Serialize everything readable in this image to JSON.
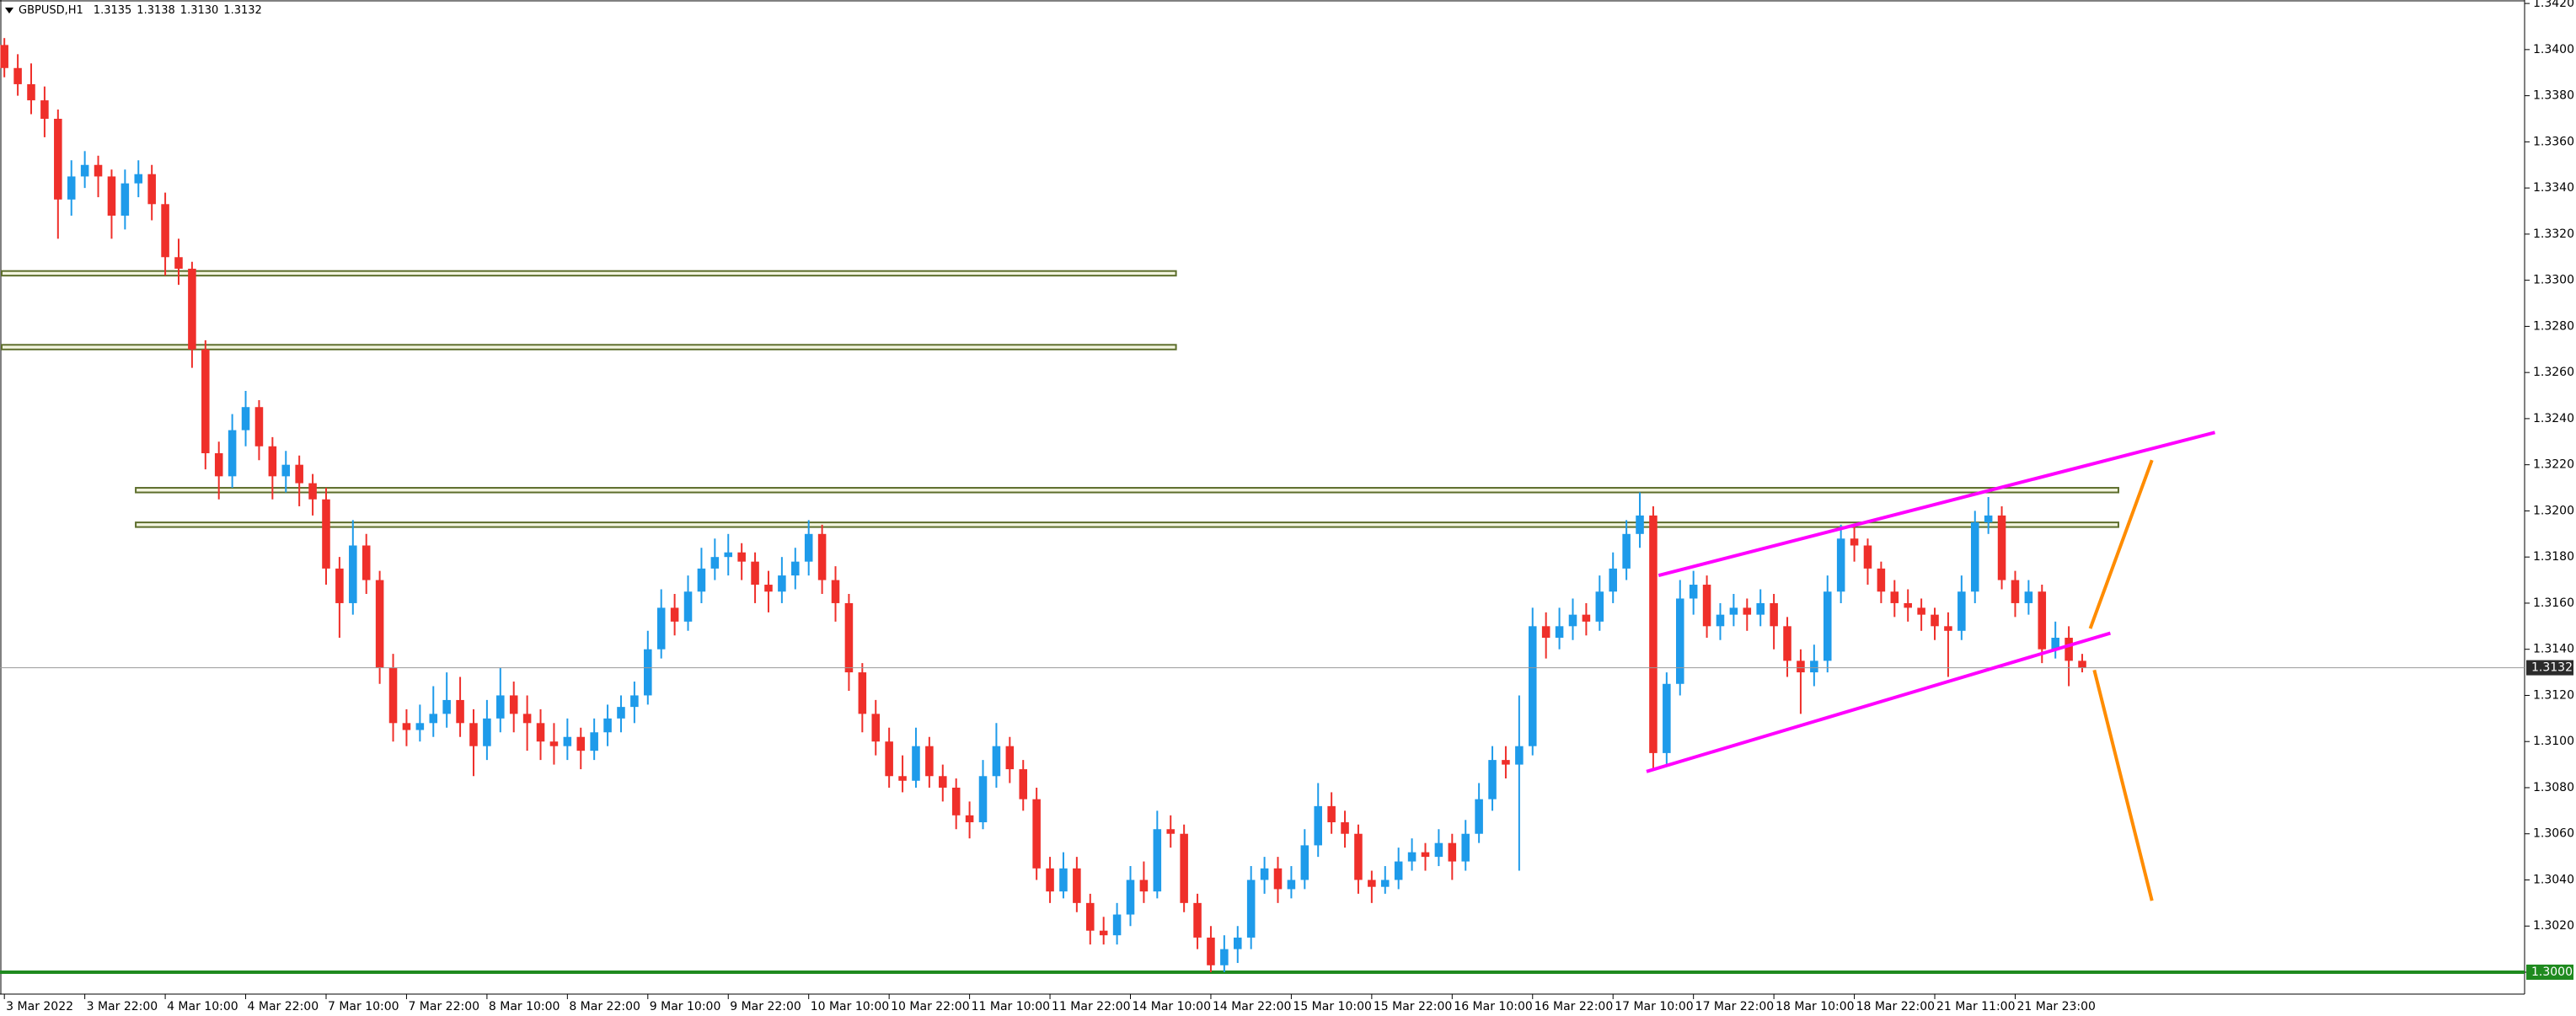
{
  "chart_data": {
    "type": "candlestick",
    "title": "GBPUSD,H1",
    "last_labels": [
      "1.3135",
      "1.3138",
      "1.3130",
      "1.3132"
    ],
    "up_color": "#1e9bea",
    "down_color": "#ef2f2a",
    "candles": [
      [
        1.3402,
        1.3405,
        1.3388,
        1.3392
      ],
      [
        1.3392,
        1.3398,
        1.338,
        1.3385
      ],
      [
        1.3385,
        1.3394,
        1.3372,
        1.3378
      ],
      [
        1.3378,
        1.3384,
        1.3362,
        1.337
      ],
      [
        1.337,
        1.3374,
        1.3318,
        1.3335
      ],
      [
        1.3335,
        1.3352,
        1.3328,
        1.3345
      ],
      [
        1.3345,
        1.3356,
        1.334,
        1.335
      ],
      [
        1.335,
        1.3354,
        1.3336,
        1.3345
      ],
      [
        1.3345,
        1.3348,
        1.3318,
        1.3328
      ],
      [
        1.3328,
        1.3348,
        1.3322,
        1.3342
      ],
      [
        1.3342,
        1.3352,
        1.3336,
        1.3346
      ],
      [
        1.3346,
        1.335,
        1.3326,
        1.3333
      ],
      [
        1.3333,
        1.3338,
        1.3302,
        1.331
      ],
      [
        1.331,
        1.3318,
        1.3298,
        1.3305
      ],
      [
        1.3305,
        1.3308,
        1.3262,
        1.327
      ],
      [
        1.327,
        1.3274,
        1.3218,
        1.3225
      ],
      [
        1.3225,
        1.323,
        1.3205,
        1.3215
      ],
      [
        1.3215,
        1.3242,
        1.321,
        1.3235
      ],
      [
        1.3235,
        1.3252,
        1.3228,
        1.3245
      ],
      [
        1.3245,
        1.3248,
        1.3222,
        1.3228
      ],
      [
        1.3228,
        1.3232,
        1.3205,
        1.3215
      ],
      [
        1.3215,
        1.3226,
        1.3208,
        1.322
      ],
      [
        1.322,
        1.3224,
        1.3202,
        1.3212
      ],
      [
        1.3212,
        1.3216,
        1.3198,
        1.3205
      ],
      [
        1.3205,
        1.321,
        1.3168,
        1.3175
      ],
      [
        1.3175,
        1.318,
        1.3145,
        1.316
      ],
      [
        1.316,
        1.3196,
        1.3155,
        1.3185
      ],
      [
        1.3185,
        1.319,
        1.3164,
        1.317
      ],
      [
        1.317,
        1.3174,
        1.3125,
        1.3132
      ],
      [
        1.3132,
        1.3138,
        1.31,
        1.3108
      ],
      [
        1.3108,
        1.3114,
        1.3098,
        1.3105
      ],
      [
        1.3105,
        1.3116,
        1.31,
        1.3108
      ],
      [
        1.3108,
        1.3124,
        1.3102,
        1.3112
      ],
      [
        1.3112,
        1.313,
        1.3106,
        1.3118
      ],
      [
        1.3118,
        1.3128,
        1.3102,
        1.3108
      ],
      [
        1.3108,
        1.3114,
        1.3085,
        1.3098
      ],
      [
        1.3098,
        1.3118,
        1.3092,
        1.311
      ],
      [
        1.311,
        1.3132,
        1.3104,
        1.312
      ],
      [
        1.312,
        1.3126,
        1.3104,
        1.3112
      ],
      [
        1.3112,
        1.312,
        1.3096,
        1.3108
      ],
      [
        1.3108,
        1.3114,
        1.3092,
        1.31
      ],
      [
        1.31,
        1.3108,
        1.309,
        1.3098
      ],
      [
        1.3098,
        1.311,
        1.3092,
        1.3102
      ],
      [
        1.3102,
        1.3106,
        1.3088,
        1.3096
      ],
      [
        1.3096,
        1.311,
        1.3092,
        1.3104
      ],
      [
        1.3104,
        1.3116,
        1.3098,
        1.311
      ],
      [
        1.311,
        1.312,
        1.3104,
        1.3115
      ],
      [
        1.3115,
        1.3126,
        1.3108,
        1.312
      ],
      [
        1.312,
        1.3148,
        1.3116,
        1.314
      ],
      [
        1.314,
        1.3166,
        1.3136,
        1.3158
      ],
      [
        1.3158,
        1.3164,
        1.3146,
        1.3152
      ],
      [
        1.3152,
        1.3172,
        1.3148,
        1.3165
      ],
      [
        1.3165,
        1.3184,
        1.316,
        1.3175
      ],
      [
        1.3175,
        1.3188,
        1.317,
        1.318
      ],
      [
        1.318,
        1.319,
        1.3172,
        1.3182
      ],
      [
        1.3182,
        1.3186,
        1.317,
        1.3178
      ],
      [
        1.3178,
        1.3182,
        1.316,
        1.3168
      ],
      [
        1.3168,
        1.3174,
        1.3156,
        1.3165
      ],
      [
        1.3165,
        1.318,
        1.316,
        1.3172
      ],
      [
        1.3172,
        1.3184,
        1.3166,
        1.3178
      ],
      [
        1.3178,
        1.3196,
        1.3172,
        1.319
      ],
      [
        1.319,
        1.3194,
        1.3164,
        1.317
      ],
      [
        1.317,
        1.3176,
        1.3152,
        1.316
      ],
      [
        1.316,
        1.3164,
        1.3122,
        1.313
      ],
      [
        1.313,
        1.3134,
        1.3104,
        1.3112
      ],
      [
        1.3112,
        1.3118,
        1.3094,
        1.31
      ],
      [
        1.31,
        1.3106,
        1.308,
        1.3085
      ],
      [
        1.3085,
        1.3094,
        1.3078,
        1.3083
      ],
      [
        1.3083,
        1.3106,
        1.308,
        1.3098
      ],
      [
        1.3098,
        1.3102,
        1.308,
        1.3085
      ],
      [
        1.3085,
        1.309,
        1.3074,
        1.308
      ],
      [
        1.308,
        1.3084,
        1.3062,
        1.3068
      ],
      [
        1.3068,
        1.3074,
        1.3058,
        1.3065
      ],
      [
        1.3065,
        1.3092,
        1.3062,
        1.3085
      ],
      [
        1.3085,
        1.3108,
        1.308,
        1.3098
      ],
      [
        1.3098,
        1.3102,
        1.3082,
        1.3088
      ],
      [
        1.3088,
        1.3092,
        1.307,
        1.3075
      ],
      [
        1.3075,
        1.308,
        1.304,
        1.3045
      ],
      [
        1.3045,
        1.305,
        1.303,
        1.3035
      ],
      [
        1.3035,
        1.3052,
        1.3032,
        1.3045
      ],
      [
        1.3045,
        1.305,
        1.3026,
        1.303
      ],
      [
        1.303,
        1.3034,
        1.3012,
        1.3018
      ],
      [
        1.3018,
        1.3024,
        1.3012,
        1.3016
      ],
      [
        1.3016,
        1.303,
        1.3012,
        1.3025
      ],
      [
        1.3025,
        1.3046,
        1.302,
        1.304
      ],
      [
        1.304,
        1.3048,
        1.303,
        1.3035
      ],
      [
        1.3035,
        1.307,
        1.3032,
        1.3062
      ],
      [
        1.3062,
        1.3068,
        1.3054,
        1.306
      ],
      [
        1.306,
        1.3064,
        1.3026,
        1.303
      ],
      [
        1.303,
        1.3034,
        1.301,
        1.3015
      ],
      [
        1.3015,
        1.302,
        1.3,
        1.3003
      ],
      [
        1.3003,
        1.3016,
        1.3,
        1.301
      ],
      [
        1.301,
        1.302,
        1.3004,
        1.3015
      ],
      [
        1.3015,
        1.3046,
        1.301,
        1.304
      ],
      [
        1.304,
        1.305,
        1.3034,
        1.3045
      ],
      [
        1.3045,
        1.305,
        1.303,
        1.3036
      ],
      [
        1.3036,
        1.3046,
        1.3032,
        1.304
      ],
      [
        1.304,
        1.3062,
        1.3036,
        1.3055
      ],
      [
        1.3055,
        1.3082,
        1.305,
        1.3072
      ],
      [
        1.3072,
        1.3078,
        1.306,
        1.3065
      ],
      [
        1.3065,
        1.307,
        1.3054,
        1.306
      ],
      [
        1.306,
        1.3064,
        1.3034,
        1.304
      ],
      [
        1.304,
        1.3044,
        1.303,
        1.3037
      ],
      [
        1.3037,
        1.3046,
        1.3034,
        1.304
      ],
      [
        1.304,
        1.3054,
        1.3036,
        1.3048
      ],
      [
        1.3048,
        1.3058,
        1.3044,
        1.3052
      ],
      [
        1.3052,
        1.3056,
        1.3044,
        1.305
      ],
      [
        1.305,
        1.3062,
        1.3046,
        1.3056
      ],
      [
        1.3056,
        1.306,
        1.304,
        1.3048
      ],
      [
        1.3048,
        1.3066,
        1.3044,
        1.306
      ],
      [
        1.306,
        1.3082,
        1.3056,
        1.3075
      ],
      [
        1.3075,
        1.3098,
        1.307,
        1.3092
      ],
      [
        1.3092,
        1.3098,
        1.3084,
        1.309
      ],
      [
        1.309,
        1.312,
        1.3044,
        1.3098
      ],
      [
        1.3098,
        1.3158,
        1.3094,
        1.315
      ],
      [
        1.315,
        1.3156,
        1.3136,
        1.3145
      ],
      [
        1.3145,
        1.3158,
        1.314,
        1.315
      ],
      [
        1.315,
        1.3162,
        1.3144,
        1.3155
      ],
      [
        1.3155,
        1.316,
        1.3146,
        1.3152
      ],
      [
        1.3152,
        1.3172,
        1.3148,
        1.3165
      ],
      [
        1.3165,
        1.3182,
        1.316,
        1.3175
      ],
      [
        1.3175,
        1.3196,
        1.317,
        1.319
      ],
      [
        1.319,
        1.3208,
        1.3184,
        1.3198
      ],
      [
        1.3198,
        1.3202,
        1.3088,
        1.3095
      ],
      [
        1.3095,
        1.313,
        1.309,
        1.3125
      ],
      [
        1.3125,
        1.317,
        1.312,
        1.3162
      ],
      [
        1.3162,
        1.3174,
        1.3155,
        1.3168
      ],
      [
        1.3168,
        1.3172,
        1.3145,
        1.315
      ],
      [
        1.315,
        1.316,
        1.3144,
        1.3155
      ],
      [
        1.3155,
        1.3164,
        1.315,
        1.3158
      ],
      [
        1.3158,
        1.3162,
        1.3148,
        1.3155
      ],
      [
        1.3155,
        1.3166,
        1.315,
        1.316
      ],
      [
        1.316,
        1.3164,
        1.314,
        1.315
      ],
      [
        1.315,
        1.3154,
        1.3128,
        1.3135
      ],
      [
        1.3135,
        1.314,
        1.3112,
        1.313
      ],
      [
        1.313,
        1.3142,
        1.3124,
        1.3135
      ],
      [
        1.3135,
        1.3172,
        1.313,
        1.3165
      ],
      [
        1.3165,
        1.3194,
        1.316,
        1.3188
      ],
      [
        1.3188,
        1.3194,
        1.3178,
        1.3185
      ],
      [
        1.3185,
        1.3188,
        1.3168,
        1.3175
      ],
      [
        1.3175,
        1.3178,
        1.316,
        1.3165
      ],
      [
        1.3165,
        1.317,
        1.3154,
        1.316
      ],
      [
        1.316,
        1.3166,
        1.3152,
        1.3158
      ],
      [
        1.3158,
        1.3162,
        1.3148,
        1.3155
      ],
      [
        1.3155,
        1.3158,
        1.3144,
        1.315
      ],
      [
        1.315,
        1.3156,
        1.3128,
        1.3148
      ],
      [
        1.3148,
        1.3172,
        1.3144,
        1.3165
      ],
      [
        1.3165,
        1.32,
        1.316,
        1.3195
      ],
      [
        1.3195,
        1.3206,
        1.319,
        1.3198
      ],
      [
        1.3198,
        1.3202,
        1.3166,
        1.317
      ],
      [
        1.317,
        1.3174,
        1.3154,
        1.316
      ],
      [
        1.316,
        1.317,
        1.3155,
        1.3165
      ],
      [
        1.3165,
        1.3168,
        1.3134,
        1.314
      ],
      [
        1.314,
        1.3152,
        1.3136,
        1.3145
      ],
      [
        1.3145,
        1.315,
        1.3124,
        1.3135
      ],
      [
        1.3135,
        1.3138,
        1.313,
        1.3132
      ]
    ],
    "xlim": [
      -0.2,
      188
    ],
    "xticks": [
      {
        "value": 0,
        "label": "3 Mar 2022"
      },
      {
        "value": 6,
        "label": "3 Mar 22:00"
      },
      {
        "value": 12,
        "label": "4 Mar 10:00"
      },
      {
        "value": 18,
        "label": "4 Mar 22:00"
      },
      {
        "value": 24,
        "label": "7 Mar 10:00"
      },
      {
        "value": 30,
        "label": "7 Mar 22:00"
      },
      {
        "value": 36,
        "label": "8 Mar 10:00"
      },
      {
        "value": 42,
        "label": "8 Mar 22:00"
      },
      {
        "value": 48,
        "label": "9 Mar 10:00"
      },
      {
        "value": 54,
        "label": "9 Mar 22:00"
      },
      {
        "value": 60,
        "label": "10 Mar 10:00"
      },
      {
        "value": 66,
        "label": "10 Mar 22:00"
      },
      {
        "value": 72,
        "label": "11 Mar 10:00"
      },
      {
        "value": 78,
        "label": "11 Mar 22:00"
      },
      {
        "value": 84,
        "label": "14 Mar 10:00"
      },
      {
        "value": 90,
        "label": "14 Mar 22:00"
      },
      {
        "value": 96,
        "label": "15 Mar 10:00"
      },
      {
        "value": 102,
        "label": "15 Mar 22:00"
      },
      {
        "value": 108,
        "label": "16 Mar 10:00"
      },
      {
        "value": 114,
        "label": "16 Mar 22:00"
      },
      {
        "value": 120,
        "label": "17 Mar 10:00"
      },
      {
        "value": 126,
        "label": "17 Mar 22:00"
      },
      {
        "value": 132,
        "label": "18 Mar 10:00"
      },
      {
        "value": 138,
        "label": "18 Mar 22:00"
      },
      {
        "value": 144,
        "label": "21 Mar 11:00"
      },
      {
        "value": 150,
        "label": "21 Mar 23:00"
      }
    ],
    "ylim": [
      1.29905,
      1.34215
    ],
    "yticks": [
      {
        "value": 1.3,
        "label": "1.3000"
      },
      {
        "value": 1.302,
        "label": "1.3020"
      },
      {
        "value": 1.304,
        "label": "1.3040"
      },
      {
        "value": 1.306,
        "label": "1.3060"
      },
      {
        "value": 1.308,
        "label": "1.3080"
      },
      {
        "value": 1.31,
        "label": "1.3100"
      },
      {
        "value": 1.312,
        "label": "1.3120"
      },
      {
        "value": 1.314,
        "label": "1.3140"
      },
      {
        "value": 1.316,
        "label": "1.3160"
      },
      {
        "value": 1.318,
        "label": "1.3180"
      },
      {
        "value": 1.32,
        "label": "1.3200"
      },
      {
        "value": 1.322,
        "label": "1.3220"
      },
      {
        "value": 1.324,
        "label": "1.3240"
      },
      {
        "value": 1.326,
        "label": "1.3260"
      },
      {
        "value": 1.328,
        "label": "1.3280"
      },
      {
        "value": 1.33,
        "label": "1.3300"
      },
      {
        "value": 1.332,
        "label": "1.3320"
      },
      {
        "value": 1.334,
        "label": "1.3340"
      },
      {
        "value": 1.336,
        "label": "1.3360"
      },
      {
        "value": 1.338,
        "label": "1.3380"
      },
      {
        "value": 1.34,
        "label": "1.3400"
      },
      {
        "value": 1.342,
        "label": "1.3420"
      }
    ],
    "grid": false,
    "zones": [
      {
        "top": 1.3304,
        "bottom": 1.3302,
        "start": -0.2,
        "end": 87.4
      },
      {
        "top": 1.3272,
        "bottom": 1.327,
        "start": -0.2,
        "end": 87.4
      },
      {
        "top": 1.321,
        "bottom": 1.3208,
        "start": 9.8,
        "end": 157.7
      },
      {
        "top": 1.3195,
        "bottom": 1.3193,
        "start": 9.8,
        "end": 157.7
      }
    ],
    "zone_color": "#5d6e2c",
    "lines": [
      {
        "points": [
          [
            123.4,
            1.3172
          ],
          [
            164.9,
            1.3234
          ]
        ],
        "color": "#ff00ff"
      },
      {
        "points": [
          [
            122.5,
            1.3087
          ],
          [
            157.1,
            1.3147
          ]
        ],
        "color": "#ff00ff"
      },
      {
        "points": [
          [
            155.6,
            1.3149
          ],
          [
            160.2,
            1.3222
          ]
        ],
        "color": "#ff8c00"
      },
      {
        "points": [
          [
            155.9,
            1.3131
          ],
          [
            160.2,
            1.3031
          ]
        ],
        "color": "#ff8c00"
      }
    ],
    "support": {
      "value": 1.3,
      "color": "#1f8a1f"
    }
  }
}
